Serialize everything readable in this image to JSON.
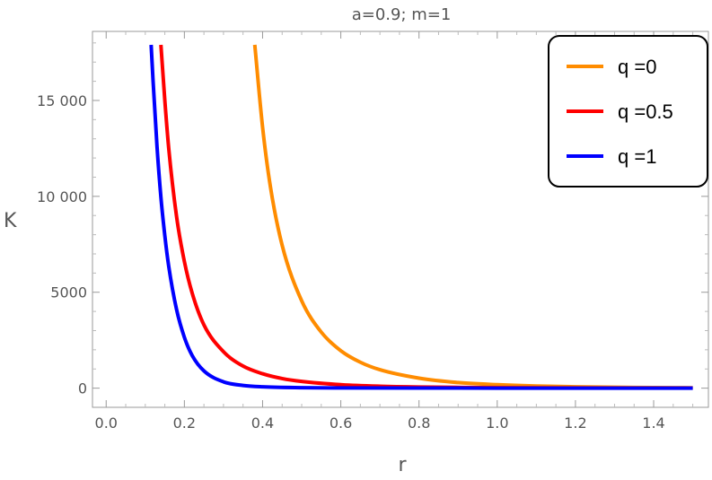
{
  "chart_data": {
    "type": "line",
    "title": "a=0.9; m=1",
    "xlabel": "r",
    "ylabel": "K",
    "xlim": [
      -0.035,
      1.54
    ],
    "ylim": [
      -1000,
      18600
    ],
    "x_ticks": [
      0.0,
      0.2,
      0.4,
      0.6,
      0.8,
      1.0,
      1.2,
      1.4
    ],
    "x_tick_labels": [
      "0.0",
      "0.2",
      "0.4",
      "0.6",
      "0.8",
      "1.0",
      "1.2",
      "1.4"
    ],
    "y_ticks": [
      0,
      5000,
      10000,
      15000
    ],
    "y_tick_labels": [
      "0",
      "5000",
      "10 000",
      "15 000"
    ],
    "grid": false,
    "legend_position": "top-right",
    "series": [
      {
        "name": "q =0",
        "color": "#ff8c00",
        "x": [
          0.38,
          0.4,
          0.42,
          0.45,
          0.5,
          0.55,
          0.6,
          0.65,
          0.7,
          0.8,
          0.9,
          1.0,
          1.1,
          1.2,
          1.3,
          1.4,
          1.5
        ],
        "y": [
          17900,
          13600,
          10500,
          7450,
          4550,
          2920,
          1950,
          1350,
          960,
          520,
          290,
          180,
          110,
          70,
          45,
          30,
          20
        ]
      },
      {
        "name": "q =0.5",
        "color": "#ff0000",
        "x": [
          0.14,
          0.15,
          0.16,
          0.18,
          0.2,
          0.22,
          0.25,
          0.3,
          0.35,
          0.4,
          0.45,
          0.5,
          0.6,
          0.7,
          0.8,
          1.0,
          1.2,
          1.5
        ],
        "y": [
          17900,
          15000,
          12500,
          8950,
          6600,
          4950,
          3300,
          1900,
          1150,
          750,
          500,
          350,
          180,
          100,
          60,
          25,
          12,
          5
        ]
      },
      {
        "name": "q =1",
        "color": "#0000ff",
        "x": [
          0.115,
          0.12,
          0.13,
          0.14,
          0.15,
          0.16,
          0.18,
          0.2,
          0.22,
          0.25,
          0.3,
          0.35,
          0.4,
          0.5,
          0.6,
          0.8,
          1.0,
          1.5
        ],
        "y": [
          17900,
          16000,
          12600,
          9950,
          7950,
          6350,
          4100,
          2650,
          1700,
          900,
          330,
          140,
          70,
          25,
          12,
          5,
          2,
          0
        ]
      }
    ]
  }
}
